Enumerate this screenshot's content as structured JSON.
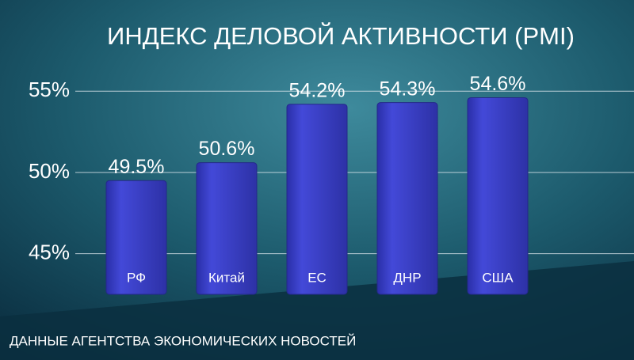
{
  "chart_data": {
    "type": "bar",
    "title": "ИНДЕКС ДЕЛОВОЙ АКТИВНОСТИ (PMI)",
    "categories": [
      "РФ",
      "Китай",
      "ЕС",
      "ДНР",
      "США"
    ],
    "values": [
      49.5,
      50.6,
      54.2,
      54.3,
      54.6
    ],
    "value_labels": [
      "49.5%",
      "50.6%",
      "54.2%",
      "54.3%",
      "54.6%"
    ],
    "color": "#3b40c9",
    "ylim": [
      42.5,
      55.5
    ],
    "yticks": [
      {
        "value": 45,
        "label": "45%"
      },
      {
        "value": 50,
        "label": "50%"
      },
      {
        "value": 55,
        "label": "55%"
      }
    ],
    "grid": true,
    "source": "ДАННЫЕ АГЕНТСТВА ЭКОНОМИЧЕСКИХ НОВОСТЕЙ"
  }
}
